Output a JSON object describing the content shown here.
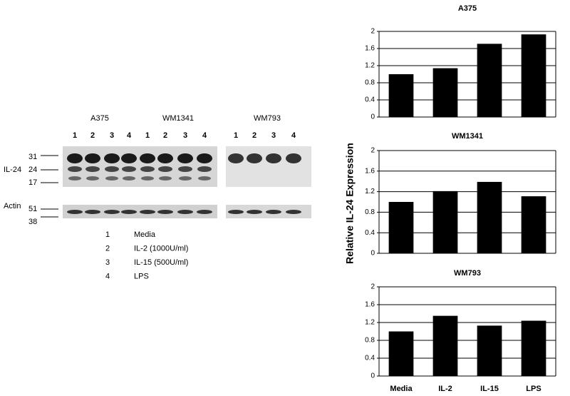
{
  "blot": {
    "cell_lines": [
      "A375",
      "WM1341",
      "WM793"
    ],
    "lanes": [
      "1",
      "2",
      "3",
      "4",
      "1",
      "2",
      "3",
      "4",
      "1",
      "2",
      "3",
      "4"
    ],
    "rows": [
      "IL-24",
      "Actin"
    ],
    "markers": [
      "31",
      "24",
      "17",
      "51",
      "38"
    ],
    "legend": [
      {
        "number": "1",
        "label": "Media"
      },
      {
        "number": "2",
        "label": "IL-2 (1000U/ml)"
      },
      {
        "number": "3",
        "label": "IL-15 (500U/ml)"
      },
      {
        "number": "4",
        "label": "LPS"
      }
    ]
  },
  "chart_data": [
    {
      "type": "bar",
      "title": "A375",
      "values": [
        1.0,
        1.14,
        1.71,
        1.93
      ],
      "color": "#000000",
      "ylim": [
        0,
        2
      ],
      "yticks": [
        0,
        0.4,
        0.8,
        1.2,
        1.6,
        2
      ],
      "grid": true
    },
    {
      "type": "bar",
      "title": "WM1341",
      "y_label": "Relative IL-24 Expression",
      "values": [
        1.0,
        1.21,
        1.39,
        1.11
      ],
      "color": "#000000",
      "ylim": [
        0,
        2
      ],
      "yticks": [
        0,
        0.4,
        0.8,
        1.2,
        1.6,
        2
      ],
      "grid": true
    },
    {
      "type": "bar",
      "title": "WM793",
      "categories": [
        "Media",
        "IL-2",
        "IL-15",
        "LPS"
      ],
      "values": [
        1.0,
        1.35,
        1.13,
        1.24
      ],
      "color": "#000000",
      "ylim": [
        0,
        2
      ],
      "yticks": [
        0,
        0.4,
        0.8,
        1.2,
        1.6,
        2
      ],
      "grid": true
    }
  ]
}
